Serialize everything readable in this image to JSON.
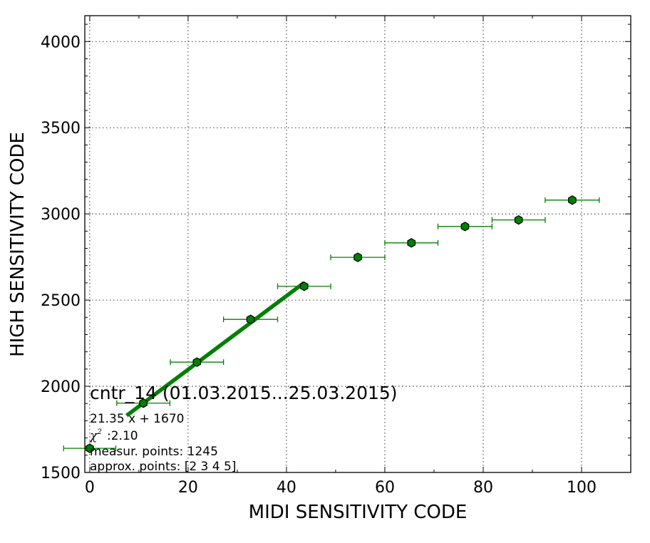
{
  "chart_data": {
    "type": "scatter",
    "xlabel": "MIDI SENSITIVITY CODE",
    "ylabel": "HIGH SENSITIVITY CODE",
    "xlim": [
      -1,
      110
    ],
    "ylim": [
      1500,
      4150
    ],
    "x_ticks": [
      0,
      20,
      40,
      60,
      80,
      100
    ],
    "y_ticks": [
      1500,
      2000,
      2500,
      3000,
      3500,
      4000
    ],
    "grid": true,
    "points": [
      {
        "x": 0.0,
        "y": 1640,
        "xerr": 5.3
      },
      {
        "x": 10.9,
        "y": 1902,
        "xerr": 5.4
      },
      {
        "x": 21.8,
        "y": 2140,
        "xerr": 5.4
      },
      {
        "x": 32.7,
        "y": 2388,
        "xerr": 5.5
      },
      {
        "x": 43.6,
        "y": 2580,
        "xerr": 5.4
      },
      {
        "x": 54.5,
        "y": 2748,
        "xerr": 5.5
      },
      {
        "x": 65.4,
        "y": 2832,
        "xerr": 5.4
      },
      {
        "x": 76.3,
        "y": 2927,
        "xerr": 5.5
      },
      {
        "x": 87.2,
        "y": 2965,
        "xerr": 5.4
      },
      {
        "x": 98.1,
        "y": 3080,
        "xerr": 5.5
      }
    ],
    "fit_line": {
      "x_start": 7.5,
      "x_end": 43.6,
      "slope": 21.35,
      "intercept": 1670
    },
    "annotation": {
      "title": "cntr_14 (01.03.2015...25.03.2015)",
      "fit": "21.35 x + 1670",
      "chi2": ":2.10",
      "measur": "measur. points: 1245",
      "approx": "approx. points: [2 3 4 5]"
    },
    "marker_color": "#008000",
    "fit_color": "#008000"
  }
}
